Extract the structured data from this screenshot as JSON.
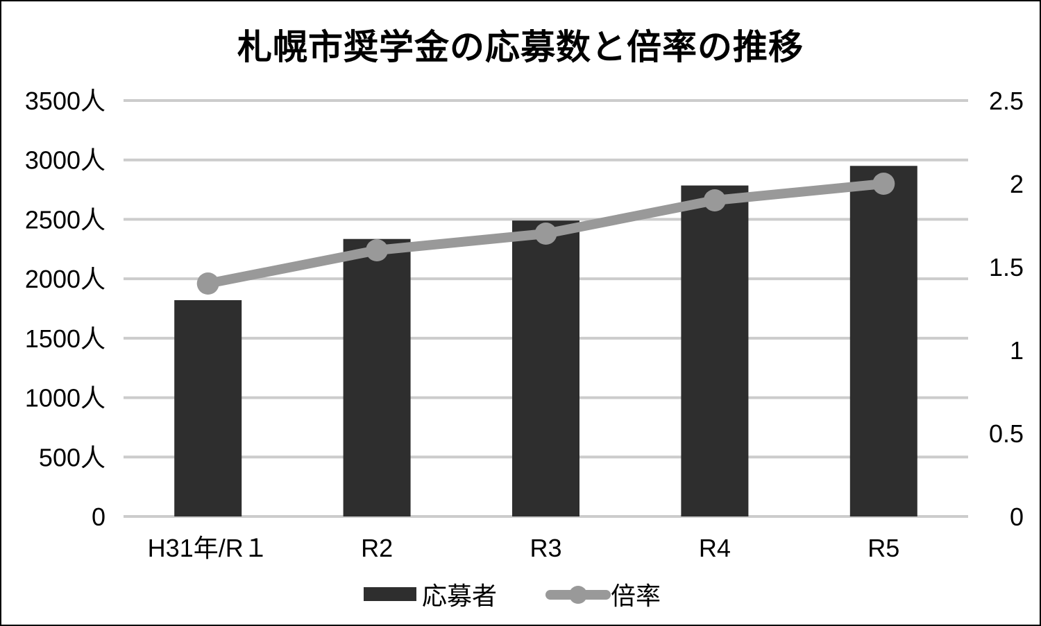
{
  "chart_data": {
    "type": "bar+line",
    "title": "札幌市奨学金の応募数と倍率の推移",
    "categories": [
      "H31年/R１",
      "R2",
      "R3",
      "R4",
      "R5"
    ],
    "series": [
      {
        "name": "応募者",
        "type": "bar",
        "axis": "left",
        "color": "#2e2e2e",
        "values": [
          1820,
          2335,
          2490,
          2785,
          2950
        ]
      },
      {
        "name": "倍率",
        "type": "line",
        "axis": "right",
        "color": "#999999",
        "values": [
          1.4,
          1.6,
          1.7,
          1.9,
          2.0
        ]
      }
    ],
    "left_axis": {
      "ylim": [
        0,
        3500
      ],
      "ticks": [
        0,
        500,
        1000,
        1500,
        2000,
        2500,
        3000,
        3500
      ],
      "tick_labels": [
        "0",
        "500人",
        "1000人",
        "1500人",
        "2000人",
        "2500人",
        "3000人",
        "3500人"
      ]
    },
    "right_axis": {
      "ylim": [
        0,
        2.5
      ],
      "ticks": [
        0,
        0.5,
        1,
        1.5,
        2,
        2.5
      ],
      "tick_labels": [
        "0",
        "0.5",
        "1",
        "1.5",
        "2",
        "2.5"
      ]
    },
    "xlabel": "",
    "ylabel": "",
    "grid": true,
    "gridline_color": "#cccccc",
    "legend_position": "bottom"
  },
  "legend": {
    "bar_label": "応募者",
    "line_label": "倍率"
  }
}
